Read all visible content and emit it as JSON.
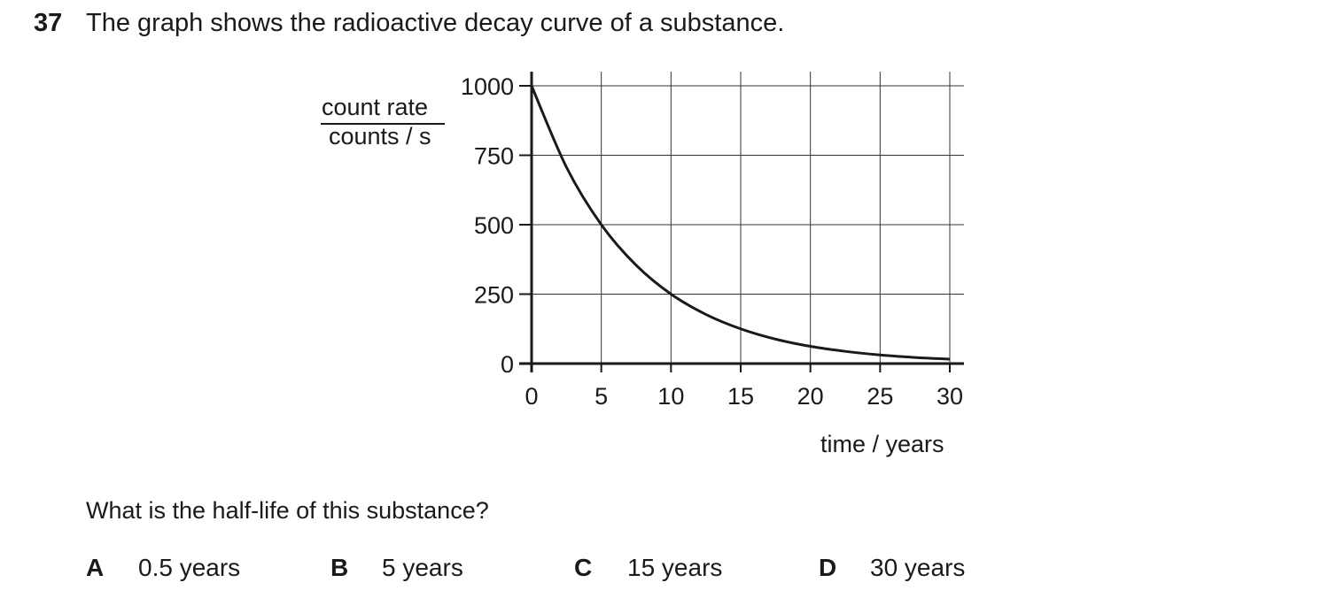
{
  "question": {
    "number": "37",
    "text": "The graph shows the radioactive decay curve of a substance.",
    "prompt": "What is the half-life of this substance?",
    "options": [
      {
        "letter": "A",
        "text": "0.5 years"
      },
      {
        "letter": "B",
        "text": "5 years"
      },
      {
        "letter": "C",
        "text": "15 years"
      },
      {
        "letter": "D",
        "text": "30 years"
      }
    ]
  },
  "chart_data": {
    "type": "line",
    "title": "",
    "ylabel_top": "count rate",
    "ylabel_bottom": "counts / s",
    "xlabel": "time / years",
    "xlim": [
      0,
      30
    ],
    "ylim": [
      0,
      1000
    ],
    "x_ticks": [
      0,
      5,
      10,
      15,
      20,
      25,
      30
    ],
    "y_ticks": [
      0,
      250,
      500,
      750,
      1000
    ],
    "x_tick_labels": [
      "0",
      "5",
      "10",
      "15",
      "20",
      "25",
      "30"
    ],
    "y_tick_labels": [
      "0",
      "250",
      "500",
      "750",
      "1000"
    ],
    "grid": true,
    "series": [
      {
        "name": "count rate",
        "x": [
          0,
          2.5,
          5,
          7.5,
          10,
          12.5,
          15,
          17.5,
          20,
          22.5,
          25,
          27.5,
          30
        ],
        "y": [
          1000,
          707,
          500,
          354,
          250,
          177,
          125,
          88,
          62,
          44,
          31,
          22,
          16
        ],
        "color": "#1a1a1a"
      }
    ]
  }
}
